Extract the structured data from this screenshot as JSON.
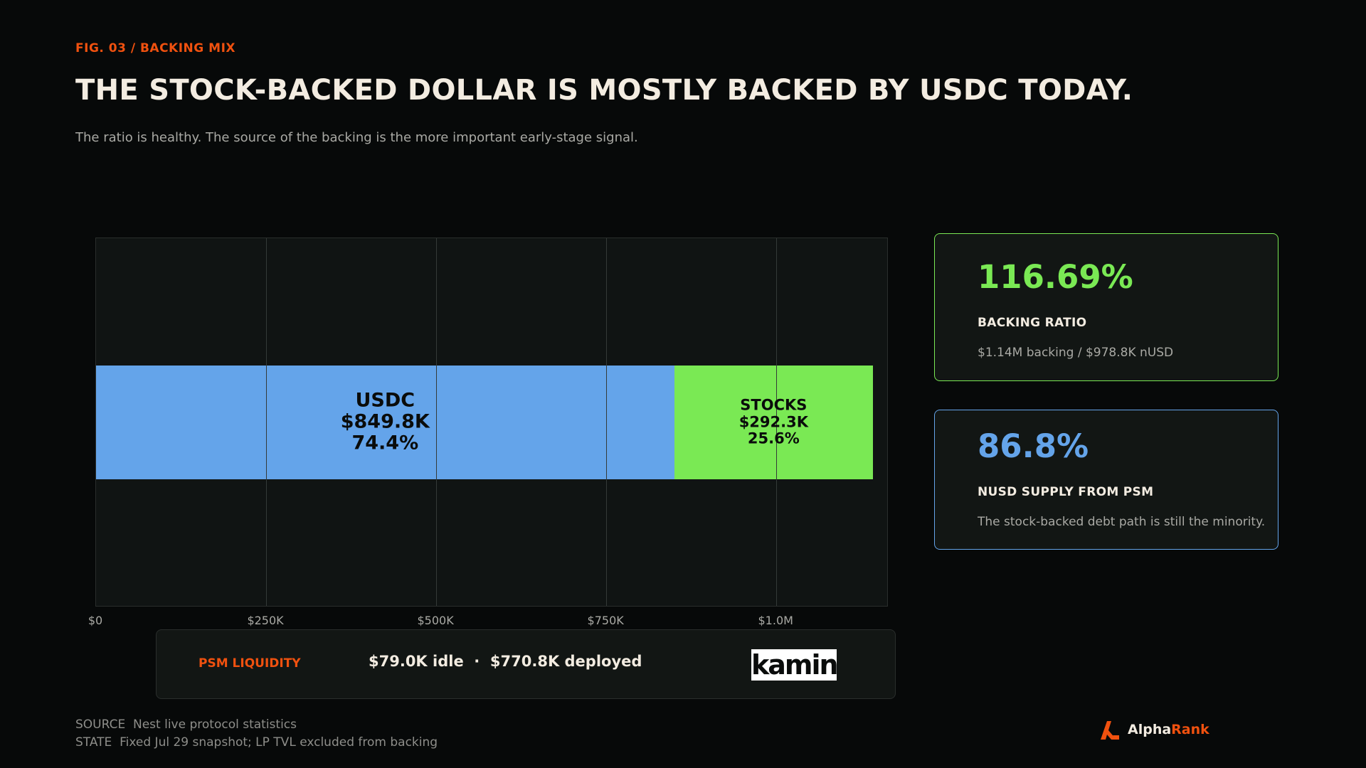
{
  "header": {
    "fig_tag": "FIG. 03 / BACKING MIX",
    "title": "THE STOCK-BACKED DOLLAR IS MOSTLY BACKED BY USDC TODAY.",
    "subtitle": "The ratio is healthy. The source of the backing is the more important early-stage signal."
  },
  "chart_data": {
    "type": "bar",
    "orientation": "horizontal",
    "stacked": true,
    "xlim": [
      0,
      1165000
    ],
    "x_ticks": [
      0,
      250000,
      500000,
      750000,
      1000000
    ],
    "x_tick_labels": [
      "$0",
      "$250K",
      "$500K",
      "$750K",
      "$1.0M"
    ],
    "grid": "vertical",
    "series": [
      {
        "name": "USDC",
        "value": 849800,
        "value_label": "$849.8K",
        "share_label": "74.4%",
        "color": "#64a4ea"
      },
      {
        "name": "STOCKS",
        "value": 292300,
        "value_label": "$292.3K",
        "share_label": "25.6%",
        "color": "#7ae954"
      }
    ]
  },
  "liquidity": {
    "label": "PSM LIQUIDITY",
    "value": "$79.0K idle  ·  $770.8K deployed",
    "logo_text": "kamino"
  },
  "cards": [
    {
      "value": "116.69%",
      "title": "BACKING RATIO",
      "note": "$1.14M backing / $978.8K nUSD",
      "color": "#7ae954"
    },
    {
      "value": "86.8%",
      "title": "NUSD SUPPLY FROM PSM",
      "note": "The stock-backed debt path is still the minority.",
      "color": "#64a4ea"
    }
  ],
  "footer": {
    "source": "SOURCE  Nest live protocol statistics",
    "state": "STATE  Fixed Jul 29 snapshot; LP TVL excluded from backing",
    "brand_part1": "Alpha",
    "brand_part2": "Rank",
    "brand_color": "#f0510f"
  }
}
